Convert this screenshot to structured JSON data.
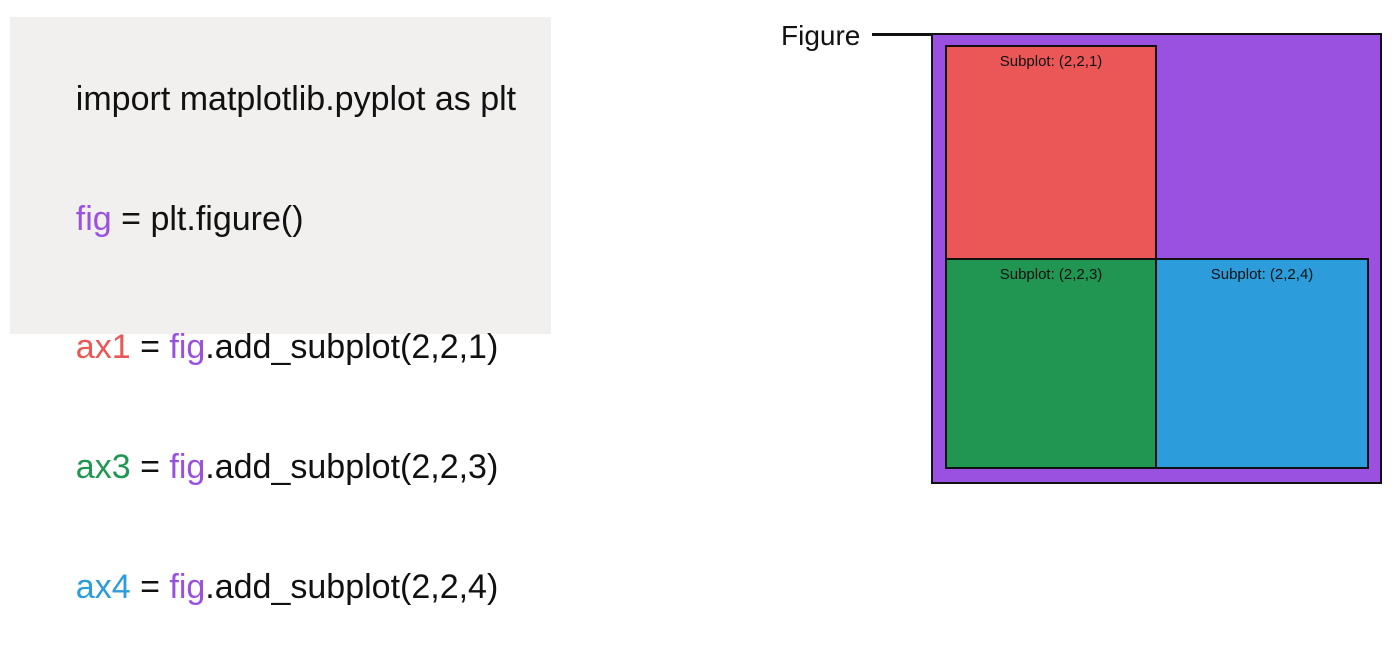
{
  "colors": {
    "fig": "#9b51e0",
    "ax1": "#eb5757",
    "ax3": "#219653",
    "ax4": "#2d9cdb",
    "panel_bg": "#f1f0ef",
    "text": "#111111"
  },
  "code": {
    "line1": "import matplotlib.pyplot as plt",
    "line2": {
      "var": "fig",
      "rest": " = plt.figure()"
    },
    "line3": {
      "var": "ax1",
      "eq": " = ",
      "fig": "fig",
      "call": ".add_subplot(2,2,1)"
    },
    "line4": {
      "var": "ax3",
      "eq": " = ",
      "fig": "fig",
      "call": ".add_subplot(2,2,3)"
    },
    "line5": {
      "var": "ax4",
      "eq": " = ",
      "fig": "fig",
      "call": ".add_subplot(2,2,4)"
    }
  },
  "diagram": {
    "figure_label": "Figure",
    "subplots": [
      {
        "label": "Subplot: (2,2,1)"
      },
      {
        "label": "Subplot: (2,2,3)"
      },
      {
        "label": "Subplot: (2,2,4)"
      }
    ]
  }
}
